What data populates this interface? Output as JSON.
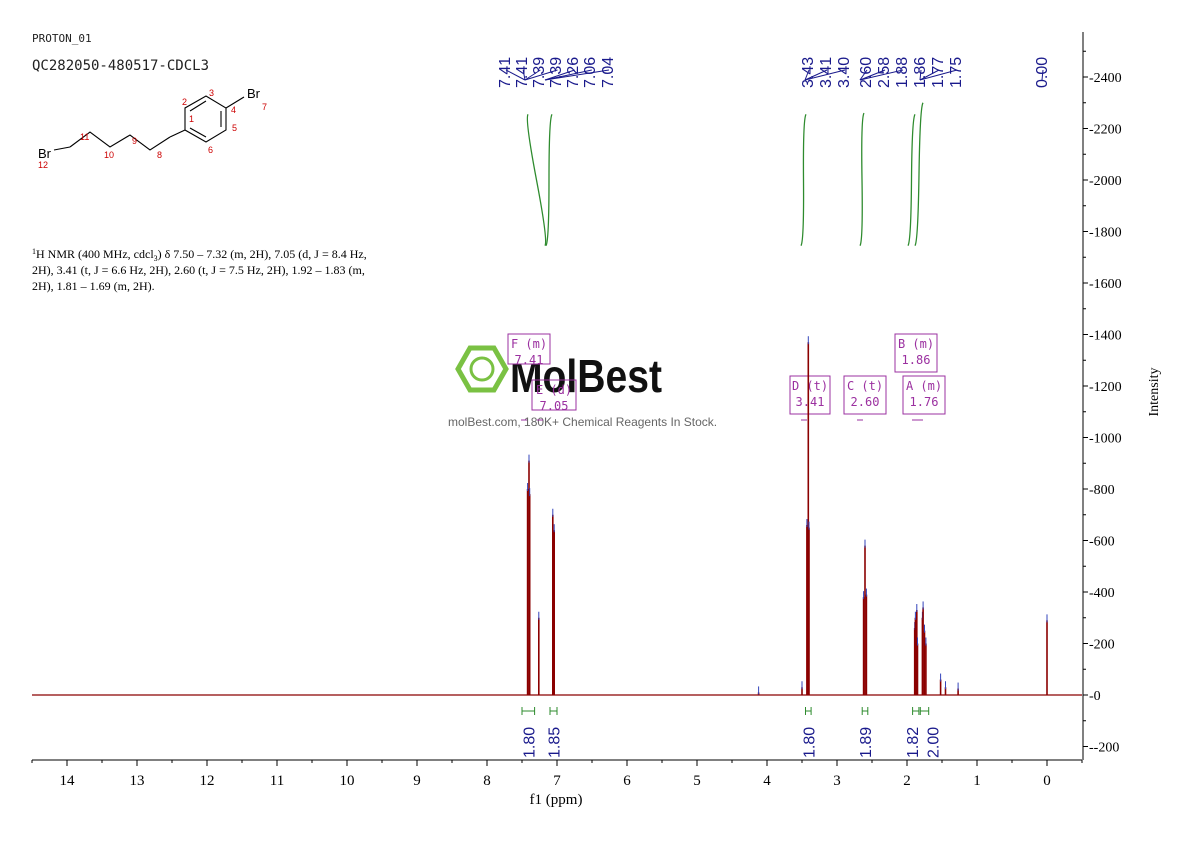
{
  "header": {
    "experiment": "PROTON_01",
    "sample": "QC282050-480517-CDCL3"
  },
  "nmr_text": {
    "line1": "H NMR (400 MHz, cdcl",
    "sup": "1",
    "sub": "3",
    "line1_rest": ") δ 7.50 – 7.32 (m, 2H), 7.05 (d, J = 8.4 Hz,",
    "line2": "2H), 3.41 (t, J = 6.6 Hz, 2H), 2.60 (t, J = 7.5 Hz, 2H), 1.92 – 1.83 (m,",
    "line3": "2H), 1.81 – 1.69 (m, 2H)."
  },
  "structure": {
    "atoms": {
      "br_top": "Br",
      "br_top_num": "7",
      "br_left": "Br",
      "br_left_num": "12",
      "n1": "1",
      "n2": "2",
      "n3": "3",
      "n4": "4",
      "n5": "5",
      "n6": "6",
      "n8": "8",
      "n9": "9",
      "n10": "10",
      "n11": "11"
    }
  },
  "watermark": {
    "brand": "MolBest",
    "tagline": "molBest.com, 180K+ Chemical Reagents In Stock."
  },
  "colors": {
    "spectrum": "#8b0000",
    "peak_label": "#1a1a8c",
    "integral": "#2e8b2e",
    "multiplet": "#9b30a0",
    "axis": "#000000",
    "atom_num": "#cc0000",
    "logo_green": "#7ac143"
  },
  "chart_data": {
    "type": "line",
    "xlabel": "f1 (ppm)",
    "ylabel": "Intensity",
    "xlim": [
      14.5,
      -0.5
    ],
    "ylim": [
      -250,
      2600
    ],
    "x_ticks": [
      14,
      13,
      12,
      11,
      10,
      9,
      8,
      7,
      6,
      5,
      4,
      3,
      2,
      1,
      0
    ],
    "y_ticks": [
      -200,
      0,
      200,
      400,
      600,
      800,
      1000,
      1200,
      1400,
      1600,
      1800,
      2000,
      2200,
      2400
    ],
    "peaks": [
      {
        "ppm": 7.42,
        "height": 800
      },
      {
        "ppm": 7.4,
        "height": 910
      },
      {
        "ppm": 7.39,
        "height": 780
      },
      {
        "ppm": 7.26,
        "height": 300
      },
      {
        "ppm": 7.06,
        "height": 700
      },
      {
        "ppm": 7.04,
        "height": 640
      },
      {
        "ppm": 3.43,
        "height": 660
      },
      {
        "ppm": 3.41,
        "height": 1370
      },
      {
        "ppm": 3.4,
        "height": 650
      },
      {
        "ppm": 2.62,
        "height": 380
      },
      {
        "ppm": 2.6,
        "height": 580
      },
      {
        "ppm": 2.58,
        "height": 390
      },
      {
        "ppm": 1.89,
        "height": 260
      },
      {
        "ppm": 1.88,
        "height": 300
      },
      {
        "ppm": 1.86,
        "height": 330
      },
      {
        "ppm": 1.85,
        "height": 200
      },
      {
        "ppm": 1.78,
        "height": 300
      },
      {
        "ppm": 1.77,
        "height": 340
      },
      {
        "ppm": 1.75,
        "height": 250
      },
      {
        "ppm": 1.73,
        "height": 200
      },
      {
        "ppm": 1.52,
        "height": 60
      },
      {
        "ppm": 1.45,
        "height": 30
      },
      {
        "ppm": 1.27,
        "height": 25
      },
      {
        "ppm": 0.0,
        "height": 290
      },
      {
        "ppm": 3.5,
        "height": 30
      },
      {
        "ppm": 4.12,
        "height": 10
      }
    ],
    "peak_labels": [
      "7.41",
      "7.41",
      "7.39",
      "7.39",
      "7.26",
      "7.06",
      "7.04",
      "3.43",
      "3.41",
      "3.40",
      "2.60",
      "2.58",
      "1.88",
      "1.86",
      "1.77",
      "1.75",
      "0.00"
    ],
    "peak_label_groups": [
      {
        "center_ppm": 7.37,
        "labels": [
          "7.41",
          "7.41",
          "7.39",
          "7.39",
          "7.26",
          "7.06",
          "7.04"
        ]
      },
      {
        "center_ppm": 3.41,
        "labels": [
          "3.43",
          "3.41",
          "3.40"
        ]
      },
      {
        "center_ppm": 1.9,
        "labels": [
          "2.60",
          "2.58",
          "1.88",
          "1.86",
          "1.77",
          "1.75"
        ]
      },
      {
        "center_ppm": 0.0,
        "labels": [
          "0.00"
        ]
      }
    ],
    "integrals": [
      {
        "from": 7.5,
        "to": 7.32,
        "value": "1.80"
      },
      {
        "from": 7.1,
        "to": 7.0,
        "value": "1.85"
      },
      {
        "from": 3.45,
        "to": 3.37,
        "value": "1.80"
      },
      {
        "from": 2.64,
        "to": 2.56,
        "value": "1.89"
      },
      {
        "from": 1.92,
        "to": 1.83,
        "value": "1.82"
      },
      {
        "from": 1.81,
        "to": 1.69,
        "value": "2.00"
      }
    ],
    "multiplets": [
      {
        "letter": "F",
        "mult": "(m)",
        "shift": "7.41"
      },
      {
        "letter": "E",
        "mult": "(d)",
        "shift": "7.05"
      },
      {
        "letter": "D",
        "mult": "(t)",
        "shift": "3.41"
      },
      {
        "letter": "C",
        "mult": "(t)",
        "shift": "2.60"
      },
      {
        "letter": "B",
        "mult": "(m)",
        "shift": "1.86"
      },
      {
        "letter": "A",
        "mult": "(m)",
        "shift": "1.76"
      }
    ]
  }
}
